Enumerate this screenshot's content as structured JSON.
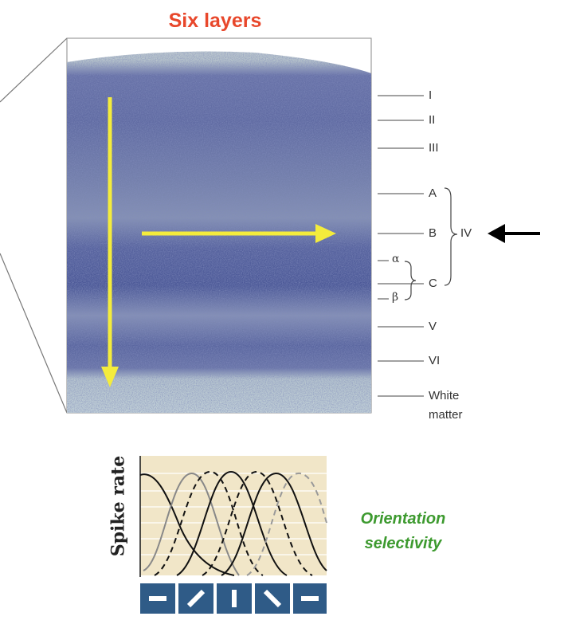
{
  "title": "Six layers",
  "layers": [
    {
      "label": "I"
    },
    {
      "label": "II"
    },
    {
      "label": "III"
    },
    {
      "label": "A"
    },
    {
      "label": "B"
    },
    {
      "label": "C"
    },
    {
      "label": "V"
    },
    {
      "label": "VI"
    },
    {
      "label": "White"
    },
    {
      "label": "matter"
    }
  ],
  "layer_iv_label": "IV",
  "sublayers": {
    "alpha": "α",
    "beta": "β"
  },
  "tuning_plot": {
    "ylabel": "Spike rate",
    "orientation_icons": [
      "horizontal-bar-icon",
      "diagonal-45-bar-icon",
      "vertical-bar-icon",
      "diagonal-135-bar-icon",
      "horizontal-bar-icon"
    ],
    "background": "#f1e6c8",
    "icon_tile_color": "#2f5b87"
  },
  "caption": {
    "line1": "Orientation",
    "line2": "selectivity"
  },
  "colors": {
    "title": "#e8472b",
    "arrows": "#f4ec3c",
    "caption": "#3d9a2f",
    "stain": "#4f5b99"
  }
}
